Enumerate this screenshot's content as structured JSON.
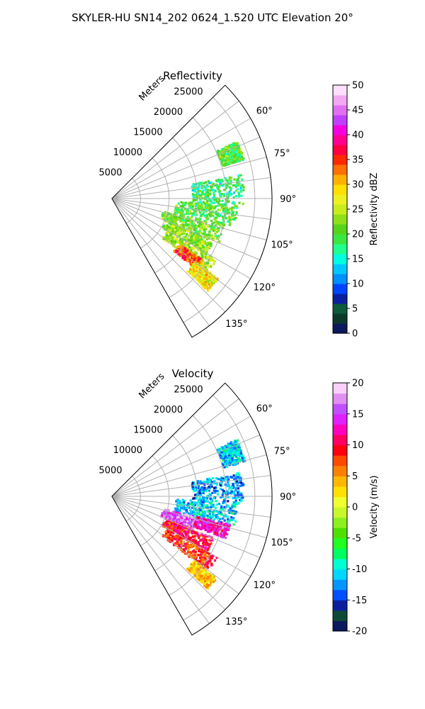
{
  "suptitle": "SKYLER-HU  SN14_202  0624_1.520 UTC Elevation 20°",
  "chart_data": [
    {
      "type": "heatmap",
      "projection": "polar-sector",
      "title": "Reflectivity",
      "radial_label": "Meters",
      "azimuth_range_deg": [
        45,
        150
      ],
      "range_max_m": 28000,
      "range_ticks": [
        5000,
        10000,
        15000,
        20000,
        25000
      ],
      "azimuth_ticks": [
        60,
        75,
        90,
        105,
        120,
        135
      ],
      "azimuth_tick_labels": [
        "60°",
        "75°",
        "90°",
        "105°",
        "120°",
        "135°"
      ],
      "grid": true,
      "colorbar": {
        "label": "Reflectivity dBZ",
        "min": 0,
        "max": 50,
        "ticks": [
          0,
          5,
          10,
          15,
          20,
          25,
          30,
          35,
          40,
          45,
          50
        ],
        "colors": [
          "#0b1a5c",
          "#0a3a2a",
          "#0d5a3c",
          "#0a1f9e",
          "#0044ff",
          "#0090ff",
          "#00c8ff",
          "#00ffe0",
          "#20ff90",
          "#3ce640",
          "#56d41a",
          "#8ee018",
          "#c8ec1c",
          "#eef020",
          "#ffe000",
          "#ffb000",
          "#ff7000",
          "#ff2a00",
          "#ff0040",
          "#ff0090",
          "#f400e0",
          "#c040ff",
          "#e070f0",
          "#f2a8f2",
          "#fce0fc"
        ]
      },
      "echoes": [
        {
          "az": [
            65,
            73
          ],
          "r": [
            20000,
            24000
          ],
          "value": 20
        },
        {
          "az": [
            79,
            92
          ],
          "r": [
            14000,
            23000
          ],
          "value": 18
        },
        {
          "az": [
            92,
            103
          ],
          "r": [
            11000,
            22000
          ],
          "value": 20
        },
        {
          "az": [
            103,
            112
          ],
          "r": [
            9000,
            20000
          ],
          "value": 21
        },
        {
          "az": [
            112,
            120
          ],
          "r": [
            10000,
            19000
          ],
          "value": 23
        },
        {
          "az": [
            120,
            128
          ],
          "r": [
            11000,
            21000
          ],
          "value": 24
        },
        {
          "az": [
            124,
            130
          ],
          "r": [
            14000,
            19000
          ],
          "value": 34
        },
        {
          "az": [
            127,
            134
          ],
          "r": [
            18000,
            23000
          ],
          "value": 28
        }
      ]
    },
    {
      "type": "heatmap",
      "projection": "polar-sector",
      "title": "Velocity",
      "radial_label": "Meters",
      "azimuth_range_deg": [
        45,
        150
      ],
      "range_max_m": 28000,
      "range_ticks": [
        5000,
        10000,
        15000,
        20000,
        25000
      ],
      "azimuth_ticks": [
        60,
        75,
        90,
        105,
        120,
        135
      ],
      "azimuth_tick_labels": [
        "60°",
        "75°",
        "90°",
        "105°",
        "120°",
        "135°"
      ],
      "grid": true,
      "colorbar": {
        "label": "Velocity (m/s)",
        "min": -20,
        "max": 20,
        "ticks": [
          -20,
          -15,
          -10,
          -5,
          0,
          5,
          10,
          15,
          20
        ],
        "colors": [
          "#0b1a5c",
          "#0d4a38",
          "#0a1f9e",
          "#0050ff",
          "#0098ff",
          "#00d8ff",
          "#00ffd0",
          "#00ff60",
          "#20ff20",
          "#50e000",
          "#8cf020",
          "#c8f82a",
          "#f0ff30",
          "#ffe000",
          "#ffb800",
          "#ff8000",
          "#ff4800",
          "#ff0010",
          "#ff0060",
          "#ff00c0",
          "#e020ff",
          "#c050ff",
          "#e090f0",
          "#f8d0f8"
        ]
      },
      "echoes": [
        {
          "az": [
            65,
            75
          ],
          "r": [
            20000,
            24000
          ],
          "value": -11
        },
        {
          "az": [
            79,
            92
          ],
          "r": [
            14000,
            23000
          ],
          "value": -12
        },
        {
          "az": [
            92,
            103
          ],
          "r": [
            11000,
            22000
          ],
          "value": -11
        },
        {
          "az": [
            103,
            112
          ],
          "r": [
            9000,
            15000
          ],
          "value": 16
        },
        {
          "az": [
            103,
            110
          ],
          "r": [
            15000,
            21000
          ],
          "value": 13
        },
        {
          "az": [
            112,
            120
          ],
          "r": [
            10000,
            19000
          ],
          "value": 10
        },
        {
          "az": [
            120,
            128
          ],
          "r": [
            11000,
            21000
          ],
          "value": 8
        },
        {
          "az": [
            128,
            134
          ],
          "r": [
            18000,
            23000
          ],
          "value": 3
        }
      ]
    }
  ]
}
